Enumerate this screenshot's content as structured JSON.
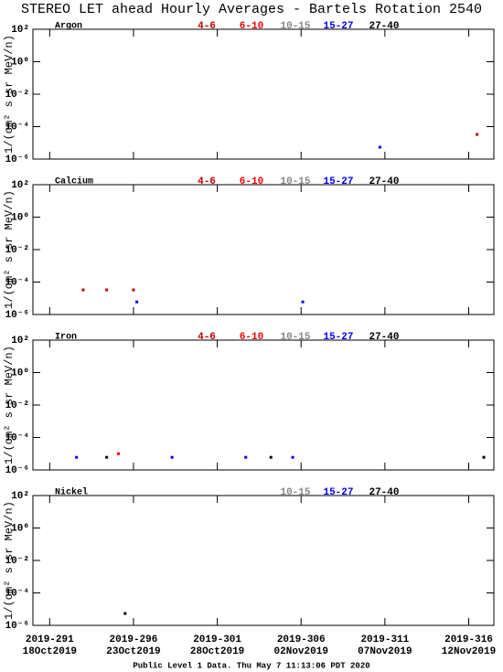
{
  "title": "STEREO LET ahead Hourly Averages - Bartels Rotation 2540",
  "footer": "Public Level 1 Data. Thu May  7 11:13:06 PDT 2020",
  "chart_data": [
    {
      "type": "scatter",
      "title": "Argon",
      "ylabel": "1/(cm² s sr MeV/n)",
      "log_y": true,
      "xlim": [
        290,
        317.5
      ],
      "xticks": [
        291,
        296,
        301,
        306,
        311,
        316
      ],
      "ylim": [
        1e-06,
        100
      ],
      "yticks": [
        {
          "value": 100,
          "label": "10²"
        },
        {
          "value": 1,
          "label": "10⁰"
        },
        {
          "value": 0.01,
          "label": "10⁻²"
        },
        {
          "value": 0.0001,
          "label": "10⁻⁴"
        },
        {
          "value": 1e-06,
          "label": "10⁻⁶"
        }
      ],
      "series": [
        {
          "name": "4-6",
          "color": "#c00000",
          "x": [
            316.5
          ],
          "values": [
            3.3e-05
          ]
        },
        {
          "name": "6-10",
          "color": "#ff0000",
          "x": [],
          "values": []
        },
        {
          "name": "10-15",
          "color": "#888888",
          "x": [],
          "values": []
        },
        {
          "name": "15-27",
          "color": "#0000ff",
          "x": [
            310.7
          ],
          "values": [
            5.4e-06
          ]
        },
        {
          "name": "27-40",
          "color": "#000000",
          "x": [],
          "values": []
        }
      ]
    },
    {
      "type": "scatter",
      "title": "Calcium",
      "ylabel": "1/(cm² s sr MeV/n)",
      "log_y": true,
      "xlim": [
        290,
        317.5
      ],
      "xticks": [
        291,
        296,
        301,
        306,
        311,
        316
      ],
      "ylim": [
        1e-06,
        100
      ],
      "yticks": [
        {
          "value": 100,
          "label": "10²"
        },
        {
          "value": 1,
          "label": "10⁰"
        },
        {
          "value": 0.01,
          "label": "10⁻²"
        },
        {
          "value": 0.0001,
          "label": "10⁻⁴"
        },
        {
          "value": 1e-06,
          "label": "10⁻⁶"
        }
      ],
      "series": [
        {
          "name": "4-6",
          "color": "#c00000",
          "x": [
            293.0,
            294.4,
            296.0
          ],
          "values": [
            3.3e-05,
            3.3e-05,
            3.3e-05
          ]
        },
        {
          "name": "6-10",
          "color": "#ff0000",
          "x": [],
          "values": []
        },
        {
          "name": "10-15",
          "color": "#888888",
          "x": [],
          "values": []
        },
        {
          "name": "15-27",
          "color": "#0000ff",
          "x": [
            296.2,
            306.1
          ],
          "values": [
            6e-06,
            6e-06
          ]
        },
        {
          "name": "27-40",
          "color": "#000000",
          "x": [],
          "values": []
        }
      ]
    },
    {
      "type": "scatter",
      "title": "Iron",
      "ylabel": "1/(cm² s sr MeV/n)",
      "log_y": true,
      "xlim": [
        290,
        317.5
      ],
      "xticks": [
        291,
        296,
        301,
        306,
        311,
        316
      ],
      "ylim": [
        1e-06,
        100
      ],
      "yticks": [
        {
          "value": 100,
          "label": "10²"
        },
        {
          "value": 1,
          "label": "10⁰"
        },
        {
          "value": 0.01,
          "label": "10⁻²"
        },
        {
          "value": 0.0001,
          "label": "10⁻⁴"
        },
        {
          "value": 1e-06,
          "label": "10⁻⁶"
        }
      ],
      "series": [
        {
          "name": "4-6",
          "color": "#c00000",
          "x": [],
          "values": []
        },
        {
          "name": "6-10",
          "color": "#ff0000",
          "x": [
            295.1
          ],
          "values": [
            1e-05
          ]
        },
        {
          "name": "10-15",
          "color": "#888888",
          "x": [],
          "values": []
        },
        {
          "name": "15-27",
          "color": "#0000ff",
          "x": [
            292.6,
            298.3,
            302.7,
            305.5
          ],
          "values": [
            6e-06,
            6e-06,
            6e-06,
            6e-06
          ]
        },
        {
          "name": "27-40",
          "color": "#000000",
          "x": [
            294.4,
            304.2,
            316.9
          ],
          "values": [
            6e-06,
            6e-06,
            6e-06
          ]
        }
      ]
    },
    {
      "type": "scatter",
      "title": "Nickel",
      "ylabel": "1/(cm² s sr MeV/n)",
      "log_y": true,
      "xlim": [
        290,
        317.5
      ],
      "xticks": [
        {
          "value": 291,
          "label": "2019-291"
        },
        {
          "value": 296,
          "label": "2019-296"
        },
        {
          "value": 301,
          "label": "2019-301"
        },
        {
          "value": 306,
          "label": "2019-306"
        },
        {
          "value": 311,
          "label": "2019-311"
        },
        {
          "value": 316,
          "label": "2019-316"
        }
      ],
      "xtick_dates": [
        "18Oct2019",
        "23Oct2019",
        "28Oct2019",
        "02Nov2019",
        "07Nov2019",
        "12Nov2019"
      ],
      "ylim": [
        1e-06,
        100
      ],
      "yticks": [
        {
          "value": 100,
          "label": "10²"
        },
        {
          "value": 1,
          "label": "10⁰"
        },
        {
          "value": 0.01,
          "label": "10⁻²"
        },
        {
          "value": 0.0001,
          "label": "10⁻⁴"
        },
        {
          "value": 1e-06,
          "label": "10⁻⁶"
        }
      ],
      "series": [
        {
          "name": "10-15",
          "color": "#888888",
          "x": [],
          "values": []
        },
        {
          "name": "15-27",
          "color": "#0000ff",
          "x": [],
          "values": []
        },
        {
          "name": "27-40",
          "color": "#000000",
          "x": [
            295.5
          ],
          "values": [
            5.4e-06
          ]
        }
      ]
    }
  ]
}
